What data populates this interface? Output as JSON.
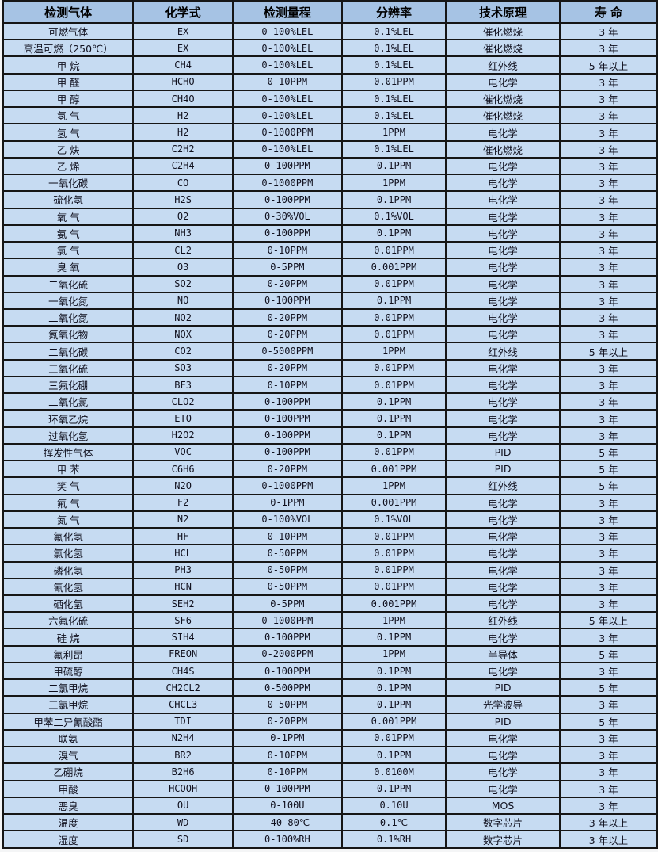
{
  "table": {
    "columns": [
      {
        "key": "gas",
        "label": "检测气体"
      },
      {
        "key": "formula",
        "label": "化学式"
      },
      {
        "key": "range",
        "label": "检测量程"
      },
      {
        "key": "resolution",
        "label": "分辨率"
      },
      {
        "key": "principle",
        "label": "技术原理"
      },
      {
        "key": "life",
        "label": "寿 命"
      }
    ],
    "rows": [
      [
        "可燃气体",
        "EX",
        "0-100%LEL",
        "0.1%LEL",
        "催化燃烧",
        "3 年"
      ],
      [
        "高温可燃（250℃）",
        "EX",
        "0-100%LEL",
        "0.1%LEL",
        "催化燃烧",
        "3 年"
      ],
      [
        "甲 烷",
        "CH4",
        "0-100%LEL",
        "0.1%LEL",
        "红外线",
        "5 年以上"
      ],
      [
        "甲 醛",
        "HCHO",
        "0-10PPM",
        "0.01PPM",
        "电化学",
        "3 年"
      ],
      [
        "甲 醇",
        "CH4O",
        "0-100%LEL",
        "0.1%LEL",
        "催化燃烧",
        "3 年"
      ],
      [
        "氢 气",
        "H2",
        "0-100%LEL",
        "0.1%LEL",
        "催化燃烧",
        "3 年"
      ],
      [
        "氢 气",
        "H2",
        "0-1000PPM",
        "1PPM",
        "电化学",
        "3 年"
      ],
      [
        "乙 炔",
        "C2H2",
        "0-100%LEL",
        "0.1%LEL",
        "催化燃烧",
        "3 年"
      ],
      [
        "乙 烯",
        "C2H4",
        "0-100PPM",
        "0.1PPM",
        "电化学",
        "3 年"
      ],
      [
        "一氧化碳",
        "CO",
        "0-1000PPM",
        "1PPM",
        "电化学",
        "3 年"
      ],
      [
        "硫化氢",
        "H2S",
        "0-100PPM",
        "0.1PPM",
        "电化学",
        "3 年"
      ],
      [
        "氧 气",
        "O2",
        "0-30%VOL",
        "0.1%VOL",
        "电化学",
        "3 年"
      ],
      [
        "氨 气",
        "NH3",
        "0-100PPM",
        "0.1PPM",
        "电化学",
        "3 年"
      ],
      [
        "氯 气",
        "CL2",
        "0-10PPM",
        "0.01PPM",
        "电化学",
        "3 年"
      ],
      [
        "臭 氧",
        "O3",
        "0-5PPM",
        "0.001PPM",
        "电化学",
        "3 年"
      ],
      [
        "二氧化硫",
        "SO2",
        "0-20PPM",
        "0.01PPM",
        "电化学",
        "3 年"
      ],
      [
        "一氧化氮",
        "NO",
        "0-100PPM",
        "0.1PPM",
        "电化学",
        "3 年"
      ],
      [
        "二氧化氮",
        "NO2",
        "0-20PPM",
        "0.01PPM",
        "电化学",
        "3 年"
      ],
      [
        "氮氧化物",
        "NOX",
        "0-20PPM",
        "0.01PPM",
        "电化学",
        "3 年"
      ],
      [
        "二氧化碳",
        "CO2",
        "0-5000PPM",
        "1PPM",
        "红外线",
        "5 年以上"
      ],
      [
        "三氧化硫",
        "SO3",
        "0-20PPM",
        "0.01PPM",
        "电化学",
        "3 年"
      ],
      [
        "三氟化硼",
        "BF3",
        "0-10PPM",
        "0.01PPM",
        "电化学",
        "3 年"
      ],
      [
        "二氧化氯",
        "CLO2",
        "0-100PPM",
        "0.1PPM",
        "电化学",
        "3 年"
      ],
      [
        "环氧乙烷",
        "ETO",
        "0-100PPM",
        "0.1PPM",
        "电化学",
        "3 年"
      ],
      [
        "过氧化氢",
        "H2O2",
        "0-100PPM",
        "0.1PPM",
        "电化学",
        "3 年"
      ],
      [
        "挥发性气体",
        "VOC",
        "0-100PPM",
        "0.01PPM",
        "PID",
        "5 年"
      ],
      [
        "甲 苯",
        "C6H6",
        "0-20PPM",
        "0.001PPM",
        "PID",
        "5 年"
      ],
      [
        "笑 气",
        "N2O",
        "0-1000PPM",
        "1PPM",
        "红外线",
        "5 年"
      ],
      [
        "氟 气",
        "F2",
        "0-1PPM",
        "0.001PPM",
        "电化学",
        "3 年"
      ],
      [
        "氮 气",
        "N2",
        "0-100%VOL",
        "0.1%VOL",
        "电化学",
        "3 年"
      ],
      [
        "氟化氢",
        "HF",
        "0-10PPM",
        "0.01PPM",
        "电化学",
        "3 年"
      ],
      [
        "氯化氢",
        "HCL",
        "0-50PPM",
        "0.01PPM",
        "电化学",
        "3 年"
      ],
      [
        "磷化氢",
        "PH3",
        "0-50PPM",
        "0.01PPM",
        "电化学",
        "3 年"
      ],
      [
        "氰化氢",
        "HCN",
        "0-50PPM",
        "0.01PPM",
        "电化学",
        "3 年"
      ],
      [
        "硒化氢",
        "SEH2",
        "0-5PPM",
        "0.001PPM",
        "电化学",
        "3 年"
      ],
      [
        "六氟化硫",
        "SF6",
        "0-1000PPM",
        "1PPM",
        "红外线",
        "5 年以上"
      ],
      [
        "硅 烷",
        "SIH4",
        "0-100PPM",
        "0.1PPM",
        "电化学",
        "3 年"
      ],
      [
        "氟利昂",
        "FREON",
        "0-2000PPM",
        "1PPM",
        "半导体",
        "5 年"
      ],
      [
        "甲硫醇",
        "CH4S",
        "0-100PPM",
        "0.1PPM",
        "电化学",
        "3 年"
      ],
      [
        "二氯甲烷",
        "CH2CL2",
        "0-500PPM",
        "0.1PPM",
        "PID",
        "5 年"
      ],
      [
        "三氯甲烷",
        "CHCL3",
        "0-50PPM",
        "0.1PPM",
        "光学波导",
        "3 年"
      ],
      [
        "甲苯二异氰酸酯",
        "TDI",
        "0-20PPM",
        "0.001PPM",
        "PID",
        "5 年"
      ],
      [
        "联氨",
        "N2H4",
        "0-1PPM",
        "0.01PPM",
        "电化学",
        "3 年"
      ],
      [
        "溴气",
        "BR2",
        "0-10PPM",
        "0.1PPM",
        "电化学",
        "3 年"
      ],
      [
        "乙硼烷",
        "B2H6",
        "0-10PPM",
        "0.0100M",
        "电化学",
        "3 年"
      ],
      [
        "甲酸",
        "HCOOH",
        "0-100PPM",
        "0.1PPM",
        "电化学",
        "3 年"
      ],
      [
        "恶臭",
        "OU",
        "0-100U",
        "0.10U",
        "MOS",
        "3 年"
      ],
      [
        "温度",
        "WD",
        "-40—80℃",
        "0.1℃",
        "数字芯片",
        "3 年以上"
      ],
      [
        "湿度",
        "SD",
        "0-100%RH",
        "0.1%RH",
        "数字芯片",
        "3 年以上"
      ]
    ]
  },
  "colors": {
    "header_bg": "#a6c3e4",
    "row_bg": "#c6dbf2",
    "border": "#161616",
    "text": "#10101e"
  }
}
